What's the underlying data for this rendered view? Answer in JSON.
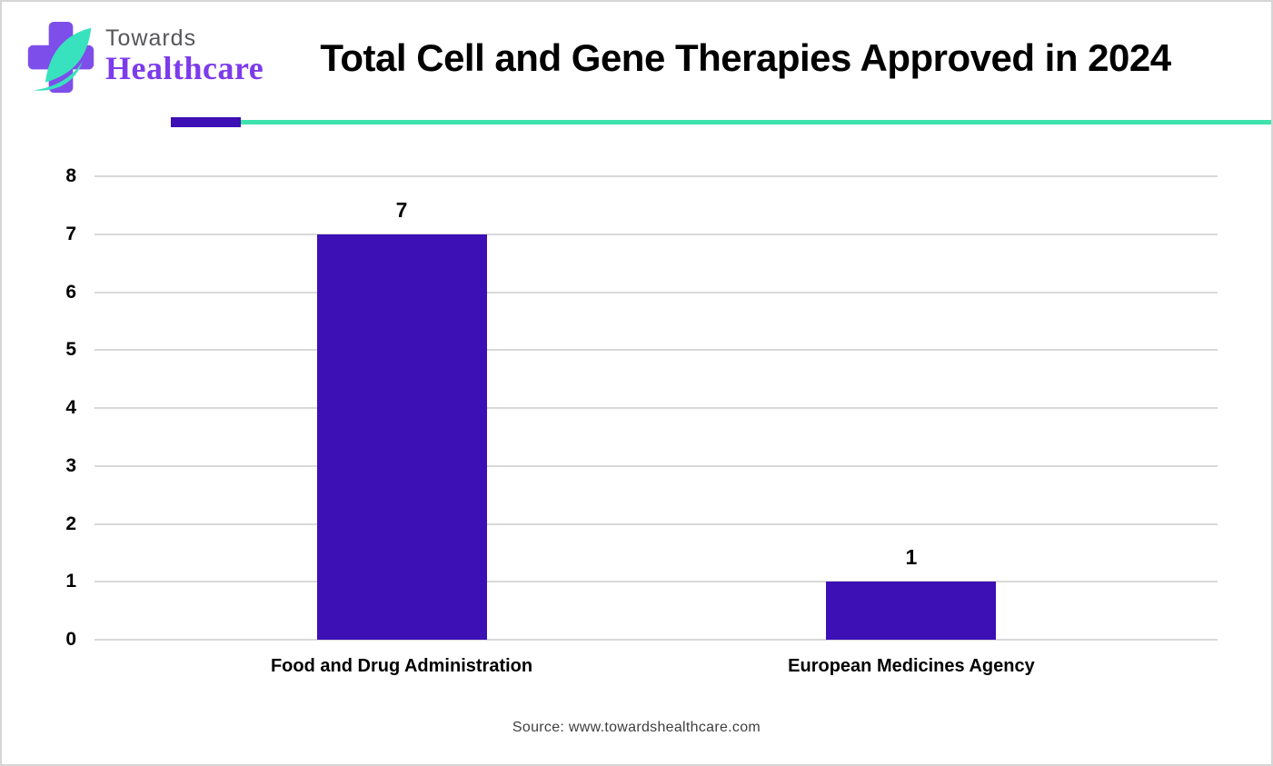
{
  "logo": {
    "towards": "Towards",
    "healthcare": "Healthcare",
    "cross_color": "#7D4EEA",
    "leaf_color": "#38E2BE",
    "towards_color": "#56565A",
    "healthcare_color": "#7C3BEC"
  },
  "header": {
    "title": "Total Cell and Gene Therapies Approved in 2024"
  },
  "divider": {
    "accent_color": "#3C10B4",
    "line_color": "#3EE2AC"
  },
  "chart_data": {
    "type": "bar",
    "title": "Total Cell and Gene Therapies Approved in 2024",
    "categories": [
      "Food and Drug Administration",
      "European Medicines Agency"
    ],
    "values": [
      7,
      1
    ],
    "data_labels": [
      "7",
      "1"
    ],
    "xlabel": "",
    "ylabel": "",
    "ylim": [
      0,
      8
    ],
    "yticks": [
      0,
      1,
      2,
      3,
      4,
      5,
      6,
      7,
      8
    ],
    "grid": true,
    "legend": false,
    "bar_color": "#3C10B4",
    "gridline_color": "#D9D9D9"
  },
  "footer": {
    "source": "Source: www.towardshealthcare.com"
  }
}
